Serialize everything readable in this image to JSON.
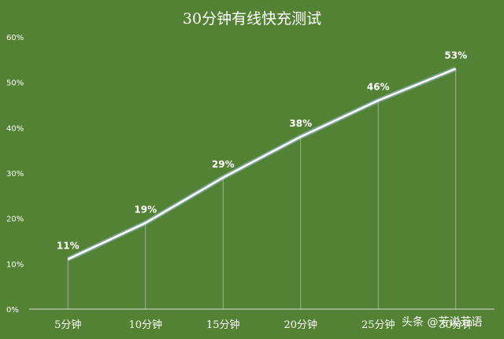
{
  "chart_data": {
    "type": "line",
    "title": "30分钟有线快充测试",
    "categories": [
      "5分钟",
      "10分钟",
      "15分钟",
      "20分钟",
      "25分钟",
      "30分钟"
    ],
    "series": [
      {
        "values": [
          11,
          19,
          29,
          38,
          46,
          53
        ]
      }
    ],
    "data_labels": [
      "11%",
      "19%",
      "29%",
      "38%",
      "46%",
      "53%"
    ],
    "y_ticks": [
      "0%",
      "10%",
      "20%",
      "30%",
      "40%",
      "50%",
      "60%"
    ],
    "ylim": [
      0,
      60
    ],
    "grid": false,
    "drop_lines": true,
    "colors": {
      "background": "#548235",
      "line": "#ffffff",
      "line_glow": "#9dc3e6",
      "text": "#ffffff"
    }
  },
  "watermark": "头条 @芳说芳语"
}
